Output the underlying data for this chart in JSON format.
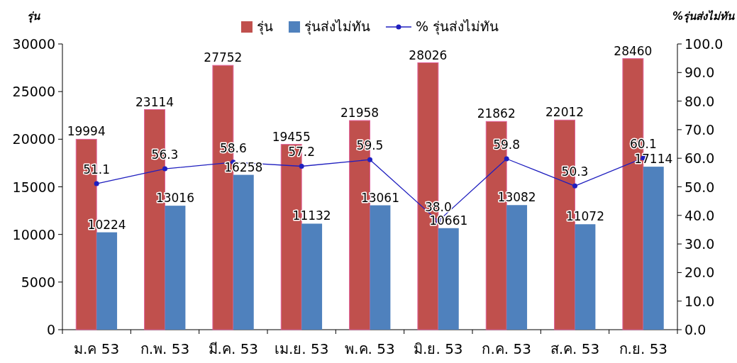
{
  "chart_data": {
    "type": "bar",
    "ylabel": "รุ่น",
    "y2label": "%รุ่นส่งไม่ทัน",
    "categories": [
      "ม.ค 53",
      "ก.พ. 53",
      "มี.ค. 53",
      "เม.ย. 53",
      "พ.ค. 53",
      "มิ.ย. 53",
      "ก.ค. 53",
      "ส.ค. 53",
      "ก.ย. 53"
    ],
    "series": [
      {
        "name": "รุ่น",
        "color": "#c0504d",
        "values": [
          19994,
          23114,
          27752,
          19455,
          21958,
          28026,
          21862,
          22012,
          28460
        ]
      },
      {
        "name": "รุ่นส่งไม่ทัน",
        "color": "#4f81bd",
        "values": [
          10224,
          13016,
          16258,
          11132,
          13061,
          10661,
          13082,
          11072,
          17114
        ]
      },
      {
        "name": "% รุ่นส่งไม่ทัน",
        "type": "line",
        "axis": "y2",
        "color": "#1f1fbf",
        "marker": "circle",
        "values": [
          51.1,
          56.3,
          58.6,
          57.2,
          59.5,
          38.0,
          59.8,
          50.3,
          60.1
        ],
        "value_labels": [
          "51.1",
          "56.3",
          "58.6",
          "57.2",
          "59.5",
          "38.0",
          "59.8",
          "50.3",
          "60.1"
        ]
      }
    ],
    "ylim": [
      0,
      30000
    ],
    "yticks": [
      0,
      5000,
      10000,
      15000,
      20000,
      25000,
      30000
    ],
    "y2lim": [
      0,
      100
    ],
    "y2ticks": [
      {
        "value": 0,
        "label": "0.0"
      },
      {
        "value": 10,
        "label": "10.0"
      },
      {
        "value": 20,
        "label": "20.0"
      },
      {
        "value": 30,
        "label": "30.0"
      },
      {
        "value": 40,
        "label": "40.0"
      },
      {
        "value": 50,
        "label": "50.0"
      },
      {
        "value": 60,
        "label": "60.0"
      },
      {
        "value": 70,
        "label": "70.0"
      },
      {
        "value": 80,
        "label": "80.0"
      },
      {
        "value": 90,
        "label": "90.0"
      },
      {
        "value": 100,
        "label": "100.0"
      }
    ],
    "data_labels": true,
    "legend": "top",
    "grid": false
  }
}
